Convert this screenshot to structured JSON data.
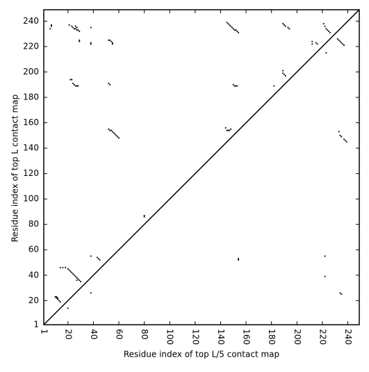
{
  "chart_data": {
    "type": "scatter",
    "xlabel": "Residue index of top L/5 contact map",
    "ylabel": "Residue index of top L contact map",
    "xlim": [
      1,
      249
    ],
    "ylim": [
      1,
      249
    ],
    "xticks": [
      1,
      20,
      40,
      60,
      80,
      100,
      120,
      140,
      160,
      180,
      200,
      220,
      240
    ],
    "yticks": [
      1,
      20,
      40,
      60,
      80,
      100,
      120,
      140,
      160,
      180,
      200,
      220,
      240
    ],
    "color": "#000000",
    "diagonal": {
      "x": [
        1,
        249
      ],
      "y": [
        1,
        249
      ]
    },
    "x": [
      7,
      7,
      6,
      21,
      23,
      24,
      25,
      26,
      26,
      27,
      27,
      28,
      29,
      29,
      29,
      38,
      38,
      38,
      52,
      53,
      54,
      55,
      55,
      22,
      23,
      24,
      25,
      26,
      27,
      28,
      52,
      53,
      52,
      53,
      54,
      55,
      56,
      57,
      58,
      59,
      60,
      80,
      80,
      38,
      43,
      44,
      45,
      14,
      16,
      18,
      20,
      21,
      22,
      23,
      24,
      25,
      26,
      27,
      28,
      27,
      29,
      30,
      10,
      11,
      12,
      13,
      14,
      11,
      12,
      20,
      38,
      145,
      146,
      147,
      148,
      149,
      150,
      151,
      152,
      153,
      154,
      144,
      145,
      146,
      147,
      148,
      150,
      151,
      152,
      153,
      182,
      189,
      189,
      190,
      191,
      189,
      190,
      191,
      193,
      194,
      212,
      212,
      215,
      216,
      221,
      222,
      223,
      224,
      225,
      226,
      223,
      232,
      233,
      234,
      235,
      236,
      237,
      154,
      154,
      222,
      222,
      233,
      234,
      235,
      237,
      238,
      239,
      234,
      235
    ],
    "y": [
      237,
      236,
      234,
      237,
      236,
      235,
      234,
      236,
      234,
      235,
      233,
      233,
      232,
      225,
      224,
      235,
      223,
      222,
      225,
      225,
      224,
      223,
      222,
      194,
      194,
      191,
      190,
      189,
      189,
      189,
      191,
      190,
      155,
      154,
      154,
      153,
      152,
      151,
      150,
      149,
      148,
      87,
      86,
      55,
      54,
      53,
      52,
      46,
      46,
      46,
      45,
      44,
      43,
      42,
      41,
      40,
      39,
      38,
      37,
      36,
      36,
      35,
      23,
      22,
      21,
      20,
      19,
      23,
      22,
      14,
      26,
      239,
      238,
      237,
      236,
      235,
      234,
      233,
      233,
      232,
      231,
      156,
      154,
      154,
      154,
      155,
      190,
      189,
      189,
      189,
      189,
      201,
      199,
      198,
      197,
      238,
      237,
      236,
      235,
      234,
      224,
      222,
      223,
      222,
      238,
      236,
      234,
      233,
      232,
      231,
      215,
      226,
      225,
      224,
      223,
      222,
      221,
      53,
      52,
      55,
      39,
      153,
      150,
      149,
      147,
      146,
      145,
      26,
      25
    ]
  }
}
